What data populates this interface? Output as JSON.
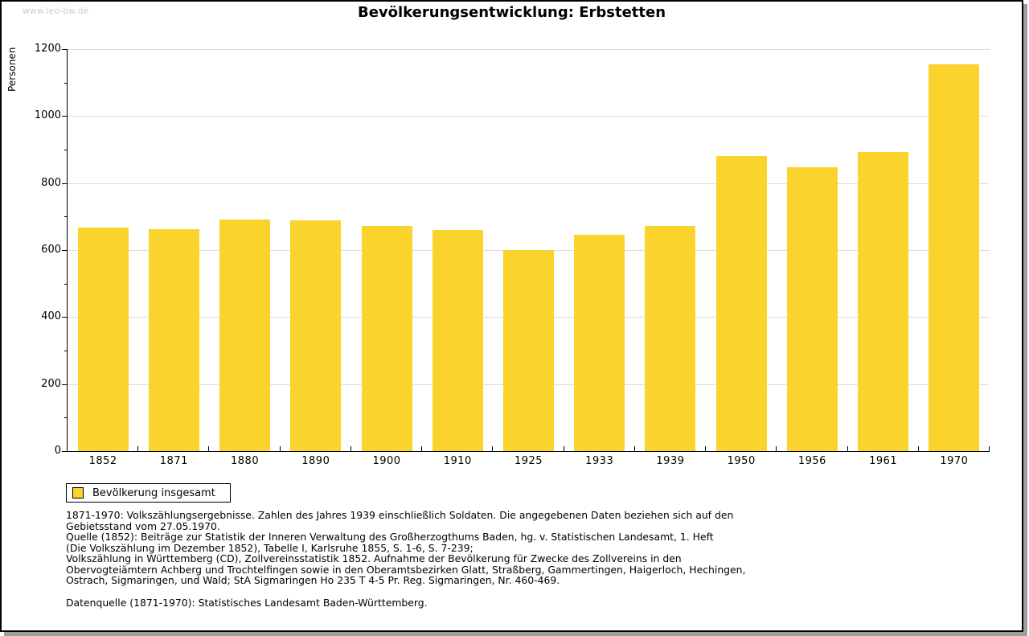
{
  "page": {
    "watermark": "www.leo-bw.de"
  },
  "chart_data": {
    "type": "bar",
    "title": "Bevölkerungsentwicklung: Erbstetten",
    "ylabel": "Personen",
    "xlabel": "",
    "categories": [
      "1852",
      "1871",
      "1880",
      "1890",
      "1900",
      "1910",
      "1925",
      "1933",
      "1939",
      "1950",
      "1956",
      "1961",
      "1970"
    ],
    "values": [
      668,
      663,
      692,
      688,
      673,
      661,
      600,
      645,
      673,
      881,
      846,
      893,
      1154
    ],
    "ylim": [
      0,
      1200
    ],
    "ytick_step": 200,
    "y_minor_step": 100,
    "yticks": [
      0,
      200,
      400,
      600,
      800,
      1000,
      1200
    ],
    "grid": true,
    "legend": [
      "Bevölkerung insgesamt"
    ],
    "legend_position": "bottom-left",
    "bar_color": "#FBD32D",
    "gridline_color": "#dcdcdc"
  },
  "footnotes": {
    "lines": [
      "1871-1970: Volkszählungsergebnisse. Zahlen des Jahres 1939 einschließlich Soldaten. Die angegebenen Daten beziehen sich auf den",
      "Gebietsstand vom 27.05.1970.",
      "Quelle (1852): Beiträge zur Statistik der Inneren Verwaltung des Großherzogthums Baden, hg. v. Statistischen Landesamt, 1. Heft",
      "(Die Volkszählung im Dezember 1852), Tabelle I, Karlsruhe 1855, S. 1-6, S. 7-239;",
      "Volkszählung in Württemberg (CD), Zollvereinsstatistik 1852. Aufnahme der Bevölkerung für Zwecke des Zollvereins in den",
      "Obervogteiämtern Achberg und Trochtelfingen sowie in den Oberamtsbezirken Glatt, Straßberg, Gammertingen, Haigerloch, Hechingen,",
      "Ostrach, Sigmaringen, und Wald; StA Sigmaringen Ho 235 T 4-5 Pr. Reg. Sigmaringen, Nr. 460-469."
    ],
    "datasource": "Datenquelle (1871-1970): Statistisches Landesamt Baden-Württemberg."
  }
}
